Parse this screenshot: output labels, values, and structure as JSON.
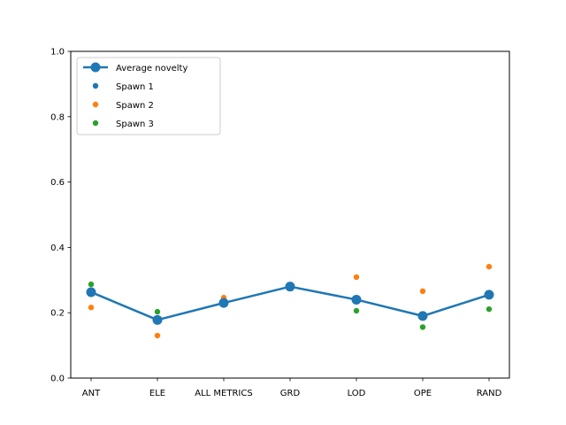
{
  "chart_data": {
    "type": "scatter",
    "title": "",
    "xlabel": "",
    "ylabel": "",
    "categories": [
      "ANT",
      "ELE",
      "ALL METRICS",
      "GRD",
      "LOD",
      "OPE",
      "RAND"
    ],
    "ylim": [
      0.0,
      1.0
    ],
    "yticks": [
      "0.0",
      "0.2",
      "0.4",
      "0.6",
      "0.8",
      "1.0"
    ],
    "grid": false,
    "legend_position": "top-left",
    "series": [
      {
        "name": "Average novelty",
        "kind": "line",
        "color": "#1f77b4",
        "values": [
          0.263,
          0.178,
          0.23,
          0.28,
          0.24,
          0.19,
          0.255
        ]
      },
      {
        "name": "Spawn 1",
        "kind": "scatter",
        "color": "#1f77b4",
        "values": [
          0.263,
          0.178,
          0.23,
          0.28,
          0.24,
          0.19,
          0.255
        ]
      },
      {
        "name": "Spawn 2",
        "kind": "scatter",
        "color": "#ff7f0e",
        "values": [
          0.216,
          0.13,
          0.246,
          0.28,
          0.309,
          0.266,
          0.341
        ]
      },
      {
        "name": "Spawn 3",
        "kind": "scatter",
        "color": "#2ca02c",
        "values": [
          0.287,
          0.203,
          0.232,
          0.28,
          0.206,
          0.156,
          0.211
        ]
      }
    ]
  }
}
